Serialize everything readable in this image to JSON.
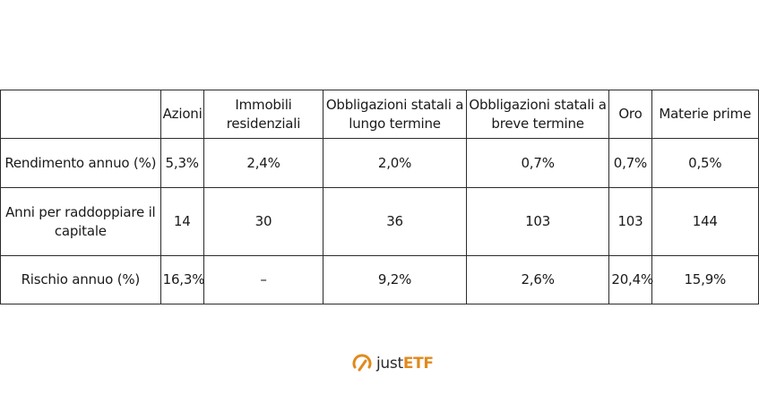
{
  "table": {
    "headers": [
      "",
      "Azioni",
      "Immobili residenziali",
      "Obbligazioni statali a lungo termine",
      "Obbligazioni statali a breve termine",
      "Oro",
      "Materie prime"
    ],
    "rows": [
      {
        "label": "Rendimento annuo (%)",
        "values": [
          "5,3%",
          "2,4%",
          "2,0%",
          "0,7%",
          "0,7%",
          "0,5%"
        ]
      },
      {
        "label": "Anni per raddoppiare il capitale",
        "values": [
          "14",
          "30",
          "36",
          "103",
          "103",
          "144"
        ]
      },
      {
        "label": "Rischio annuo (%)",
        "values": [
          "16,3%",
          "–",
          "9,2%",
          "2,6%",
          "20,4%",
          "15,9%"
        ]
      }
    ]
  },
  "logo": {
    "text_just": "just",
    "text_etf": "ETF",
    "icon": "gauge-icon",
    "brand_color": "#e08a1e"
  }
}
